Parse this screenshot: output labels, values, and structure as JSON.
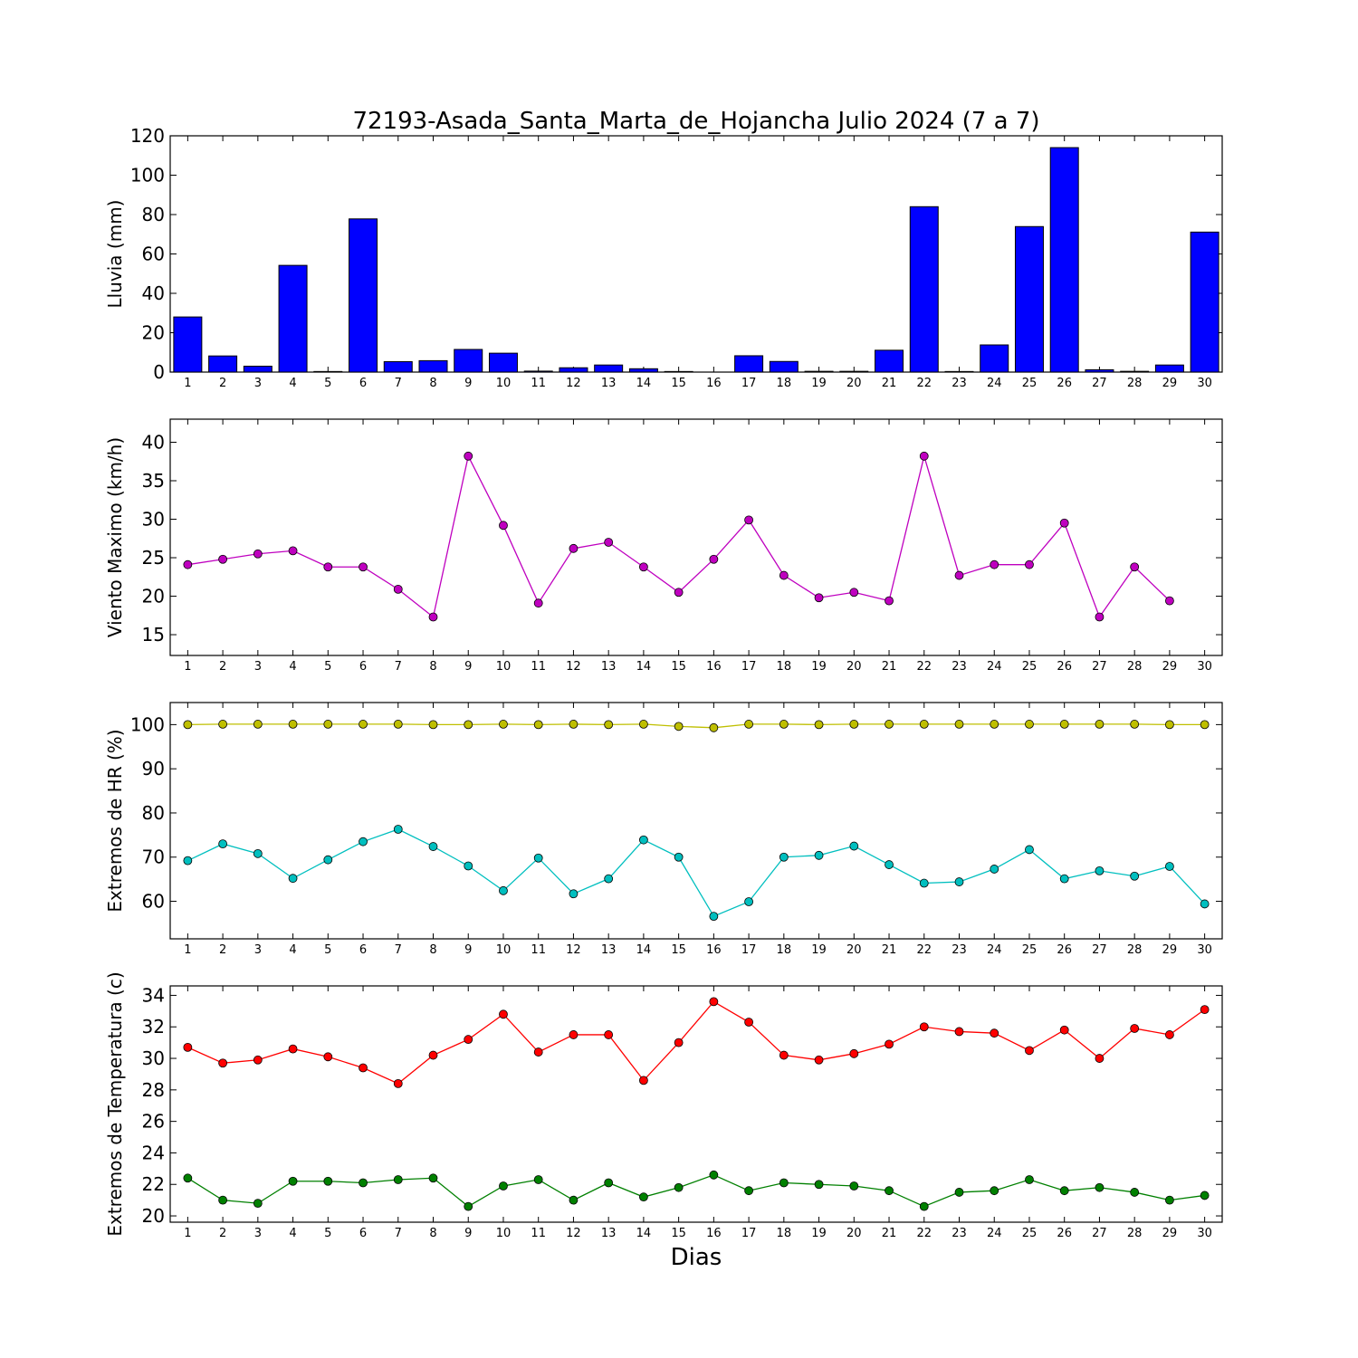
{
  "figure": {
    "title": "72193-Asada_Santa_Marta_de_Hojancha Julio 2024  (7 a 7)",
    "xlabel": "Dias"
  },
  "chart_data": [
    {
      "type": "bar",
      "ylabel": "Lluvia (mm)",
      "ylim": [
        0,
        120
      ],
      "yticks": [
        0,
        20,
        40,
        60,
        80,
        100,
        120
      ],
      "categories": [
        1,
        2,
        3,
        4,
        5,
        6,
        7,
        8,
        9,
        10,
        11,
        12,
        13,
        14,
        15,
        16,
        17,
        18,
        19,
        20,
        21,
        22,
        23,
        24,
        25,
        26,
        27,
        28,
        29,
        30
      ],
      "series": [
        {
          "color": "#0000ff",
          "values": [
            28.0,
            8.2,
            3.0,
            54.2,
            0.3,
            77.8,
            5.3,
            5.8,
            11.5,
            9.6,
            0.5,
            2.2,
            3.6,
            1.7,
            0.3,
            0.0,
            8.3,
            5.4,
            0.4,
            0.4,
            11.1,
            84.0,
            0.3,
            13.8,
            73.9,
            114.0,
            1.2,
            0.4,
            3.6,
            71.1
          ]
        }
      ]
    },
    {
      "type": "line",
      "ylabel": "Viento Maximo (km/h)",
      "ylim": [
        12.3,
        43
      ],
      "yticks": [
        15,
        20,
        25,
        30,
        35,
        40
      ],
      "x": [
        1,
        2,
        3,
        4,
        5,
        6,
        7,
        8,
        9,
        10,
        11,
        12,
        13,
        14,
        15,
        16,
        17,
        18,
        19,
        20,
        21,
        22,
        23,
        24,
        25,
        26,
        27,
        28,
        29,
        30
      ],
      "series": [
        {
          "color": "#bf00bf",
          "values": [
            24.1,
            24.8,
            25.5,
            25.9,
            23.8,
            23.8,
            20.9,
            17.3,
            38.2,
            29.2,
            19.1,
            26.2,
            27.0,
            23.8,
            20.5,
            24.8,
            29.9,
            22.7,
            19.8,
            20.5,
            19.4,
            38.2,
            22.7,
            24.1,
            24.1,
            29.5,
            17.3,
            23.8,
            19.4,
            null
          ]
        }
      ]
    },
    {
      "type": "line",
      "ylabel": "Extremos de HR (%)",
      "ylim": [
        51.5,
        105
      ],
      "yticks": [
        60,
        70,
        80,
        90,
        100
      ],
      "x": [
        1,
        2,
        3,
        4,
        5,
        6,
        7,
        8,
        9,
        10,
        11,
        12,
        13,
        14,
        15,
        16,
        17,
        18,
        19,
        20,
        21,
        22,
        23,
        24,
        25,
        26,
        27,
        28,
        29,
        30
      ],
      "series": [
        {
          "color": "#bfbf00",
          "values": [
            100,
            100.1,
            100.1,
            100.1,
            100.1,
            100.1,
            100.1,
            100,
            100,
            100.1,
            100,
            100.1,
            100,
            100.1,
            99.6,
            99.3,
            100.1,
            100.1,
            100,
            100.1,
            100.1,
            100.1,
            100.1,
            100.1,
            100.1,
            100.1,
            100.1,
            100.1,
            100,
            100
          ]
        },
        {
          "color": "#00bfbf",
          "values": [
            69.2,
            73.0,
            70.8,
            65.2,
            69.4,
            73.5,
            76.3,
            72.4,
            68.0,
            62.4,
            69.8,
            61.7,
            65.1,
            73.9,
            70.0,
            56.6,
            59.9,
            70.0,
            70.4,
            72.5,
            68.3,
            64.1,
            64.4,
            67.3,
            71.7,
            65.1,
            66.9,
            65.7,
            67.9,
            59.4
          ]
        }
      ]
    },
    {
      "type": "line",
      "ylabel": "Extremos de Temperatura (c)",
      "ylim": [
        19.6,
        34.6
      ],
      "yticks": [
        20,
        22,
        24,
        26,
        28,
        30,
        32,
        34
      ],
      "x": [
        1,
        2,
        3,
        4,
        5,
        6,
        7,
        8,
        9,
        10,
        11,
        12,
        13,
        14,
        15,
        16,
        17,
        18,
        19,
        20,
        21,
        22,
        23,
        24,
        25,
        26,
        27,
        28,
        29,
        30
      ],
      "series": [
        {
          "color": "#ff0000",
          "values": [
            30.7,
            29.7,
            29.9,
            30.6,
            30.1,
            29.4,
            28.4,
            30.2,
            31.2,
            32.8,
            30.4,
            31.5,
            31.5,
            28.6,
            31.0,
            33.6,
            32.3,
            30.2,
            29.9,
            30.3,
            30.9,
            32.0,
            31.7,
            31.6,
            30.5,
            31.8,
            30.0,
            31.9,
            31.5,
            33.1
          ]
        },
        {
          "color": "#008000",
          "values": [
            22.4,
            21.0,
            20.8,
            22.2,
            22.2,
            22.1,
            22.3,
            22.4,
            20.6,
            21.9,
            22.3,
            21.0,
            22.1,
            21.2,
            21.8,
            22.6,
            21.6,
            22.1,
            22.0,
            21.9,
            21.6,
            20.6,
            21.5,
            21.6,
            22.3,
            21.6,
            21.8,
            21.5,
            21.0,
            21.3
          ]
        }
      ]
    }
  ]
}
